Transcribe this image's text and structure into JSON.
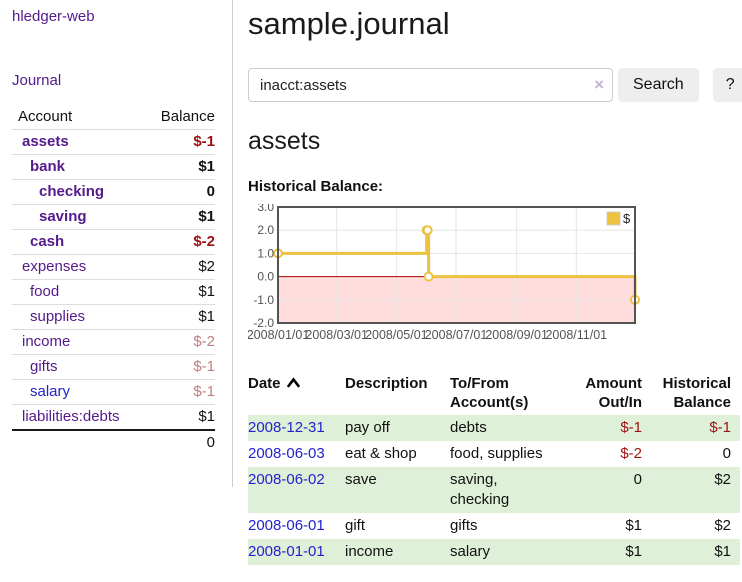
{
  "colors": {
    "link_purple": "#551a8b",
    "link_blue": "#2222cc",
    "negative_strong": "#9e1010",
    "negative_soft": "#c08080",
    "highlight_row_green": "#dff0d8",
    "chart_series": "#edc240",
    "chart_negative_fill": "#ffdddd",
    "chart_zero_line": "#aa0000",
    "chart_frame": "#545454",
    "grid_line": "#e6e6e6"
  },
  "sidebar": {
    "app_title": "hledger-web",
    "journal_link": "Journal",
    "accounts": {
      "header_account": "Account",
      "header_balance": "Balance",
      "rows": [
        {
          "label": "assets",
          "depth": 1,
          "bold": true,
          "link": "purple",
          "balance": "$-1",
          "neg": "strong"
        },
        {
          "label": "bank",
          "depth": 2,
          "bold": true,
          "link": "purple",
          "balance": "$1",
          "neg": null
        },
        {
          "label": "checking",
          "depth": 3,
          "bold": true,
          "link": "purple",
          "balance": "0",
          "neg": null
        },
        {
          "label": "saving",
          "depth": 3,
          "bold": true,
          "link": "purple",
          "balance": "$1",
          "neg": null
        },
        {
          "label": "cash",
          "depth": 2,
          "bold": true,
          "link": "purple",
          "balance": "$-2",
          "neg": "strong"
        },
        {
          "label": "expenses",
          "depth": 1,
          "bold": false,
          "link": "purple",
          "balance": "$2",
          "neg": null
        },
        {
          "label": "food",
          "depth": 2,
          "bold": false,
          "link": "purple",
          "balance": "$1",
          "neg": null
        },
        {
          "label": "supplies",
          "depth": 2,
          "bold": false,
          "link": "purple",
          "balance": "$1",
          "neg": null
        },
        {
          "label": "income",
          "depth": 1,
          "bold": false,
          "link": "purple",
          "balance": "$-2",
          "neg": "soft"
        },
        {
          "label": "gifts",
          "depth": 2,
          "bold": false,
          "link": "purple",
          "balance": "$-1",
          "neg": "soft"
        },
        {
          "label": "salary",
          "depth": 2,
          "bold": false,
          "link": "blue",
          "balance": "$-1",
          "neg": "soft"
        },
        {
          "label": "liabilities:debts",
          "depth": 1,
          "bold": false,
          "link": "purple",
          "balance": "$1",
          "neg": null
        }
      ],
      "total": "0"
    }
  },
  "main": {
    "title": "sample.journal",
    "search": {
      "value": "inacct:assets",
      "clear_icon": "×",
      "button_label": "Search",
      "help_label": "?"
    },
    "heading": "assets",
    "chart_title": "Historical Balance:"
  },
  "chart_data": {
    "type": "line",
    "step": true,
    "title": "Historical Balance",
    "series": [
      {
        "name": "$",
        "color": "#edc240",
        "points": [
          [
            "2008-01-01",
            1
          ],
          [
            "2008-06-01",
            2
          ],
          [
            "2008-06-02",
            2
          ],
          [
            "2008-06-03",
            0
          ],
          [
            "2008-12-31",
            -1
          ]
        ]
      }
    ],
    "xlim": [
      "2008-01-01",
      "2008-12-31"
    ],
    "ylim": [
      -2,
      3
    ],
    "x_ticks": [
      "2008/01/01",
      "2008/03/01",
      "2008/05/01",
      "2008/07/01",
      "2008/09/01",
      "2008/11/01"
    ],
    "y_ticks": [
      3.0,
      2.0,
      1.0,
      0.0,
      -1.0,
      -2.0
    ],
    "legend": {
      "position": "top-right",
      "labels": [
        "$"
      ]
    },
    "grid": true,
    "negative_region_shaded": true
  },
  "register": {
    "headers": {
      "date": "Date",
      "description": "Description",
      "accounts": "To/From Account(s)",
      "amount": "Amount Out/In",
      "balance": "Historical Balance"
    },
    "rows": [
      {
        "date": "2008-12-31",
        "description": "pay off",
        "accounts": "debts",
        "amount": "$-1",
        "amount_neg": true,
        "balance": "$-1",
        "balance_neg": true,
        "highlighted": true
      },
      {
        "date": "2008-06-03",
        "description": "eat & shop",
        "accounts": "food, supplies",
        "amount": "$-2",
        "amount_neg": true,
        "balance": "0",
        "balance_neg": false,
        "highlighted": false
      },
      {
        "date": "2008-06-02",
        "description": "save",
        "accounts": "saving, checking",
        "amount": "0",
        "amount_neg": false,
        "balance": "$2",
        "balance_neg": false,
        "highlighted": true
      },
      {
        "date": "2008-06-01",
        "description": "gift",
        "accounts": "gifts",
        "amount": "$1",
        "amount_neg": false,
        "balance": "$2",
        "balance_neg": false,
        "highlighted": false
      },
      {
        "date": "2008-01-01",
        "description": "income",
        "accounts": "salary",
        "amount": "$1",
        "amount_neg": false,
        "balance": "$1",
        "balance_neg": false,
        "highlighted": true
      }
    ]
  }
}
